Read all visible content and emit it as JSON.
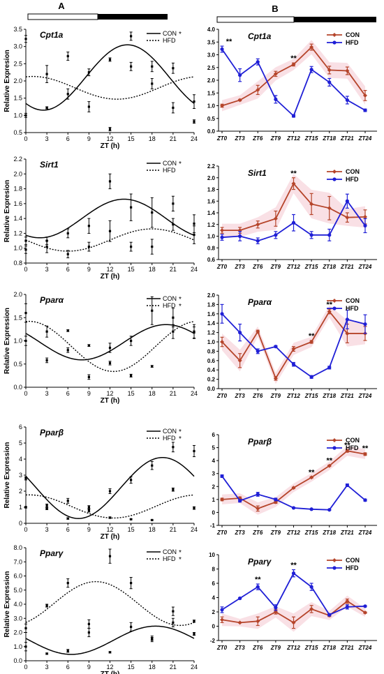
{
  "panel_labels": [
    "A",
    "B"
  ],
  "colors": {
    "con_right": "#b5442a",
    "hfd_right": "#1f1fd6",
    "band": "#f4c6cf",
    "axis": "#000000"
  },
  "chart_data": [
    {
      "type": "scatter",
      "panel": "A",
      "title": "Cpt1a",
      "ylabel": "Relative Expresion",
      "xlabel": "ZT (h)",
      "x": [
        0,
        3,
        6,
        9,
        12,
        15,
        18,
        21,
        24
      ],
      "xlim": [
        0,
        24
      ],
      "ylim": [
        0.5,
        3.5
      ],
      "xticks": [
        "0",
        "3",
        "6",
        "9",
        "12",
        "15",
        "18",
        "21",
        "24"
      ],
      "yticks": [
        "0.5",
        "1.0",
        "1.5",
        "2.0",
        "2.5",
        "3.0",
        "3.5"
      ],
      "legend": [
        "CON",
        "HFD"
      ],
      "legend_stars": [
        "*",
        ""
      ],
      "series": [
        {
          "name": "CON",
          "values": [
            1.0,
            1.22,
            2.72,
            2.25,
            2.62,
            3.3,
            2.42,
            2.37,
            1.4
          ],
          "err": [
            0.06,
            0.03,
            0.12,
            0.1,
            0.05,
            0.12,
            0.15,
            0.15,
            0.2
          ],
          "fit": {
            "mesor": 2.1,
            "amp": 0.95,
            "peak": 14.5
          }
        },
        {
          "name": "HFD",
          "values": [
            3.22,
            2.2,
            1.62,
            1.25,
            0.6,
            2.42,
            1.92,
            1.22,
            0.82
          ],
          "err": [
            0.1,
            0.25,
            0.15,
            0.15,
            0.05,
            0.12,
            0.15,
            0.15,
            0.05
          ],
          "fit": {
            "mesor": 1.8,
            "amp": 0.33,
            "peak": 1.0
          }
        }
      ]
    },
    {
      "type": "line",
      "panel": "B",
      "title": "Cpt1a",
      "ylim": [
        0,
        4
      ],
      "categories": [
        "ZT0",
        "ZT3",
        "ZT6",
        "ZT9",
        "ZT12",
        "ZT15",
        "ZT18",
        "ZT21",
        "ZT24"
      ],
      "yticks": [
        "0.0",
        "0.5",
        "1.0",
        "1.5",
        "2.0",
        "2.5",
        "3.0",
        "3.5",
        "4.0"
      ],
      "legend": [
        "CON",
        "HFD"
      ],
      "annotations": [
        {
          "text": "**",
          "index": 0
        },
        {
          "text": "**",
          "index": 4
        }
      ],
      "series": [
        {
          "name": "CON",
          "values": [
            1.0,
            1.22,
            1.62,
            2.25,
            2.62,
            3.3,
            2.4,
            2.37,
            1.4
          ],
          "err": [
            0.06,
            0.03,
            0.18,
            0.1,
            0.06,
            0.12,
            0.15,
            0.15,
            0.2
          ]
        },
        {
          "name": "HFD",
          "values": [
            3.22,
            2.2,
            2.72,
            1.25,
            0.6,
            2.42,
            1.92,
            1.22,
            0.82
          ],
          "err": [
            0.12,
            0.25,
            0.12,
            0.15,
            0.05,
            0.12,
            0.15,
            0.15,
            0.05
          ]
        }
      ]
    },
    {
      "type": "scatter",
      "panel": "A",
      "title": "Sirt1",
      "ylabel": "Relative Expresion",
      "xlabel": "ZT (h)",
      "x": [
        0,
        3,
        6,
        9,
        12,
        15,
        18,
        21,
        24
      ],
      "xlim": [
        0,
        24
      ],
      "ylim": [
        0.8,
        2.2
      ],
      "xticks": [
        "0",
        "3",
        "6",
        "9",
        "12",
        "15",
        "18",
        "21",
        "24"
      ],
      "yticks": [
        "0.8",
        "1.0",
        "1.2",
        "1.4",
        "1.6",
        "1.8",
        "2.0",
        "2.2"
      ],
      "legend": [
        "CON",
        "HFD"
      ],
      "legend_stars": [
        "*",
        ""
      ],
      "series": [
        {
          "name": "CON",
          "values": [
            1.1,
            1.1,
            1.2,
            1.3,
            1.9,
            1.55,
            1.48,
            1.32,
            1.33
          ],
          "err": [
            0.05,
            0.05,
            0.06,
            0.1,
            0.1,
            0.18,
            0.2,
            0.08,
            0.12
          ],
          "fit": {
            "mesor": 1.4,
            "amp": 0.26,
            "peak": 14.0
          }
        },
        {
          "name": "HFD",
          "values": [
            0.98,
            1.02,
            0.92,
            1.02,
            1.23,
            1.02,
            1.02,
            1.6,
            1.18
          ],
          "err": [
            0.05,
            0.08,
            0.05,
            0.06,
            0.14,
            0.06,
            0.1,
            0.1,
            0.12
          ],
          "fit": {
            "mesor": 1.11,
            "amp": 0.15,
            "peak": 18.0
          }
        }
      ]
    },
    {
      "type": "line",
      "panel": "B",
      "title": "Sirt1",
      "ylim": [
        0.6,
        2.2
      ],
      "categories": [
        "ZT0",
        "ZT3",
        "ZT6",
        "ZT9",
        "ZT12",
        "ZT15",
        "ZT18",
        "ZT21",
        "ZT24"
      ],
      "yticks": [
        "0.6",
        "0.8",
        "1.0",
        "1.2",
        "1.4",
        "1.6",
        "1.8",
        "2.0",
        "2.2"
      ],
      "legend": [
        "CON",
        "HFD"
      ],
      "annotations": [
        {
          "text": "**",
          "index": 4
        }
      ],
      "series": [
        {
          "name": "CON",
          "values": [
            1.1,
            1.1,
            1.2,
            1.3,
            1.9,
            1.55,
            1.48,
            1.32,
            1.33
          ],
          "err": [
            0.05,
            0.05,
            0.06,
            0.13,
            0.1,
            0.18,
            0.2,
            0.08,
            0.12
          ]
        },
        {
          "name": "HFD",
          "values": [
            0.98,
            1.0,
            0.92,
            1.02,
            1.23,
            1.02,
            1.02,
            1.6,
            1.18
          ],
          "err": [
            0.05,
            0.08,
            0.05,
            0.06,
            0.14,
            0.06,
            0.1,
            0.12,
            0.12
          ]
        }
      ]
    },
    {
      "type": "scatter",
      "panel": "A",
      "title": "Pparα",
      "ylabel": "Relative Expression",
      "xlabel": "ZT (h)",
      "x": [
        0,
        3,
        6,
        9,
        12,
        15,
        18,
        21,
        24
      ],
      "xlim": [
        0,
        24
      ],
      "ylim": [
        0,
        2.0
      ],
      "xticks": [
        "0",
        "3",
        "6",
        "9",
        "12",
        "15",
        "18",
        "21",
        "24"
      ],
      "yticks": [
        "0.0",
        "0.5",
        "1.0",
        "1.5",
        "2.0"
      ],
      "legend": [
        "CON",
        "HFD"
      ],
      "legend_stars": [
        "*",
        "*"
      ],
      "series": [
        {
          "name": "CON",
          "values": [
            1.0,
            1.2,
            0.8,
            0.9,
            0.85,
            1.0,
            1.65,
            1.5,
            1.2
          ],
          "err": [
            0.1,
            0.12,
            0.05,
            0.02,
            0.1,
            0.1,
            0.3,
            0.2,
            0.15
          ],
          "fit": {
            "mesor": 0.97,
            "amp": 0.38,
            "peak": 20.0
          }
        },
        {
          "name": "HFD",
          "values": [
            1.6,
            0.58,
            1.22,
            0.22,
            0.52,
            0.25,
            0.45,
            1.2,
            1.18
          ],
          "err": [
            0.2,
            0.05,
            0.02,
            0.05,
            0.04,
            0.03,
            0.02,
            0.15,
            0.12
          ],
          "fit": {
            "mesor": 0.88,
            "amp": 0.54,
            "peak": 0.5
          }
        }
      ]
    },
    {
      "type": "line",
      "panel": "B",
      "title": "Pparα",
      "ylim": [
        0,
        2.0
      ],
      "categories": [
        "ZT0",
        "ZT3",
        "ZT6",
        "ZT9",
        "ZT12",
        "ZT15",
        "ZT18",
        "ZT21",
        "ZT24"
      ],
      "yticks": [
        "0.0",
        "0.2",
        "0.4",
        "0.6",
        "0.8",
        "1.0",
        "1.2",
        "1.4",
        "1.6",
        "1.8",
        "2.0"
      ],
      "legend": [
        "CON",
        "HFD"
      ],
      "annotations": [
        {
          "text": "**",
          "index": 5
        },
        {
          "text": "**",
          "index": 6
        }
      ],
      "series": [
        {
          "name": "CON",
          "values": [
            1.0,
            0.6,
            1.22,
            0.22,
            0.85,
            1.0,
            1.65,
            1.18,
            1.18
          ],
          "err": [
            0.1,
            0.15,
            0.03,
            0.04,
            0.05,
            0.03,
            0.05,
            0.2,
            0.15
          ]
        },
        {
          "name": "HFD",
          "values": [
            1.6,
            1.2,
            0.8,
            0.9,
            0.52,
            0.25,
            0.45,
            1.48,
            1.38
          ],
          "err": [
            0.2,
            0.18,
            0.05,
            0.02,
            0.04,
            0.03,
            0.03,
            0.2,
            0.2
          ]
        }
      ]
    },
    {
      "type": "scatter",
      "panel": "A",
      "title": "Pparβ",
      "ylabel": "Relative Expression",
      "xlabel": "ZT (h)",
      "x": [
        0,
        3,
        6,
        9,
        12,
        15,
        18,
        21,
        24
      ],
      "xlim": [
        0,
        24
      ],
      "ylim": [
        0,
        6
      ],
      "xticks": [
        "0",
        "3",
        "6",
        "9",
        "12",
        "15",
        "18",
        "21",
        "24"
      ],
      "yticks": [
        "0",
        "1",
        "2",
        "3",
        "4",
        "5",
        "6"
      ],
      "legend": [
        "CON",
        "HFD"
      ],
      "legend_stars": [
        "*",
        "*"
      ],
      "series": [
        {
          "name": "CON",
          "values": [
            2.8,
            1.1,
            1.4,
            1.0,
            2.0,
            2.7,
            3.6,
            4.75,
            4.5
          ],
          "err": [
            0.1,
            0.1,
            0.15,
            0.1,
            0.15,
            0.2,
            0.25,
            0.3,
            0.35
          ],
          "fit": {
            "mesor": 2.2,
            "amp": 1.9,
            "peak": 19.5
          }
        },
        {
          "name": "HFD",
          "values": [
            1.0,
            0.9,
            0.3,
            0.8,
            0.35,
            0.25,
            0.2,
            2.1,
            0.95
          ],
          "err": [
            0.05,
            0.05,
            0.05,
            0.1,
            0.05,
            0.03,
            0.03,
            0.1,
            0.08
          ],
          "fit": {
            "mesor": 1.05,
            "amp": 0.72,
            "peak": 0.5
          }
        }
      ]
    },
    {
      "type": "line",
      "panel": "B",
      "title": "Pparβ",
      "ylim": [
        -1,
        6
      ],
      "categories": [
        "ZT0",
        "ZT3",
        "ZT6",
        "ZT9",
        "ZT12",
        "ZT15",
        "ZT18",
        "ZT21",
        "ZT24"
      ],
      "yticks": [
        "-1",
        "0",
        "1",
        "2",
        "3",
        "4",
        "5",
        "6"
      ],
      "legend": [
        "CON",
        "HFD"
      ],
      "annotations": [
        {
          "text": "**",
          "index": 5
        },
        {
          "text": "**",
          "index": 6
        },
        {
          "text": "**",
          "index": 7
        },
        {
          "text": "**",
          "index": 8
        }
      ],
      "series": [
        {
          "name": "CON",
          "values": [
            1.0,
            1.1,
            0.3,
            0.8,
            1.9,
            2.7,
            3.6,
            4.75,
            4.5
          ],
          "err": [
            0.1,
            0.1,
            0.2,
            0.1,
            0.05,
            0.05,
            0.05,
            0.1,
            0.1
          ]
        },
        {
          "name": "HFD",
          "values": [
            2.8,
            0.9,
            1.4,
            1.0,
            0.35,
            0.25,
            0.2,
            2.1,
            0.95
          ],
          "err": [
            0.1,
            0.1,
            0.15,
            0.1,
            0.03,
            0.03,
            0.03,
            0.1,
            0.08
          ]
        }
      ]
    },
    {
      "type": "scatter",
      "panel": "A",
      "title": "Pparγ",
      "ylabel": "Relative Expression",
      "xlabel": "ZT (h)",
      "x": [
        0,
        3,
        6,
        9,
        12,
        15,
        18,
        21,
        24
      ],
      "xlim": [
        0,
        24
      ],
      "ylim": [
        0,
        8.0
      ],
      "xticks": [
        "0",
        "3",
        "6",
        "9",
        "12",
        "15",
        "18",
        "21",
        "24"
      ],
      "yticks": [
        "0.0",
        "1.0",
        "2.0",
        "3.0",
        "4.0",
        "5.0",
        "6.0",
        "7.0",
        "8.0"
      ],
      "legend": [
        "CON",
        "HFD"
      ],
      "legend_stars": [
        "*",
        "*"
      ],
      "series": [
        {
          "name": "CON",
          "values": [
            1.0,
            0.5,
            0.7,
            2.0,
            0.6,
            2.4,
            1.5,
            3.5,
            1.9
          ],
          "err": [
            0.3,
            0.05,
            0.1,
            0.3,
            0.05,
            0.3,
            0.15,
            0.3,
            0.1
          ],
          "fit": {
            "mesor": 1.45,
            "amp": 1.0,
            "peak": 18.5
          }
        },
        {
          "name": "HFD",
          "values": [
            2.3,
            3.9,
            5.5,
            2.6,
            7.4,
            5.5,
            1.6,
            2.7,
            2.8
          ],
          "err": [
            0.3,
            0.1,
            0.3,
            0.3,
            0.5,
            0.4,
            0.15,
            0.3,
            0.08
          ],
          "fit": {
            "mesor": 4.05,
            "amp": 1.55,
            "peak": 10.0
          }
        }
      ]
    },
    {
      "type": "line",
      "panel": "B",
      "title": "Pparγ",
      "ylim": [
        -2,
        10
      ],
      "categories": [
        "ZT0",
        "ZT3",
        "ZT6",
        "ZT9",
        "ZT12",
        "ZT15",
        "ZT18",
        "ZT21",
        "ZT24"
      ],
      "yticks": [
        "-2",
        "0",
        "2",
        "4",
        "6",
        "8",
        "10"
      ],
      "legend": [
        "CON",
        "HFD"
      ],
      "annotations": [
        {
          "text": "**",
          "index": 2
        },
        {
          "text": "**",
          "index": 4
        }
      ],
      "series": [
        {
          "name": "CON",
          "values": [
            0.9,
            0.5,
            0.7,
            2.0,
            0.5,
            2.4,
            1.5,
            3.5,
            1.9
          ],
          "err": [
            0.4,
            0.05,
            0.6,
            0.3,
            0.8,
            0.5,
            0.15,
            0.3,
            0.1
          ]
        },
        {
          "name": "HFD",
          "values": [
            2.3,
            3.9,
            5.5,
            2.6,
            7.4,
            5.5,
            1.6,
            2.7,
            2.8
          ],
          "err": [
            0.4,
            0.1,
            0.4,
            0.4,
            0.5,
            0.5,
            0.15,
            0.3,
            0.08
          ]
        }
      ]
    }
  ]
}
